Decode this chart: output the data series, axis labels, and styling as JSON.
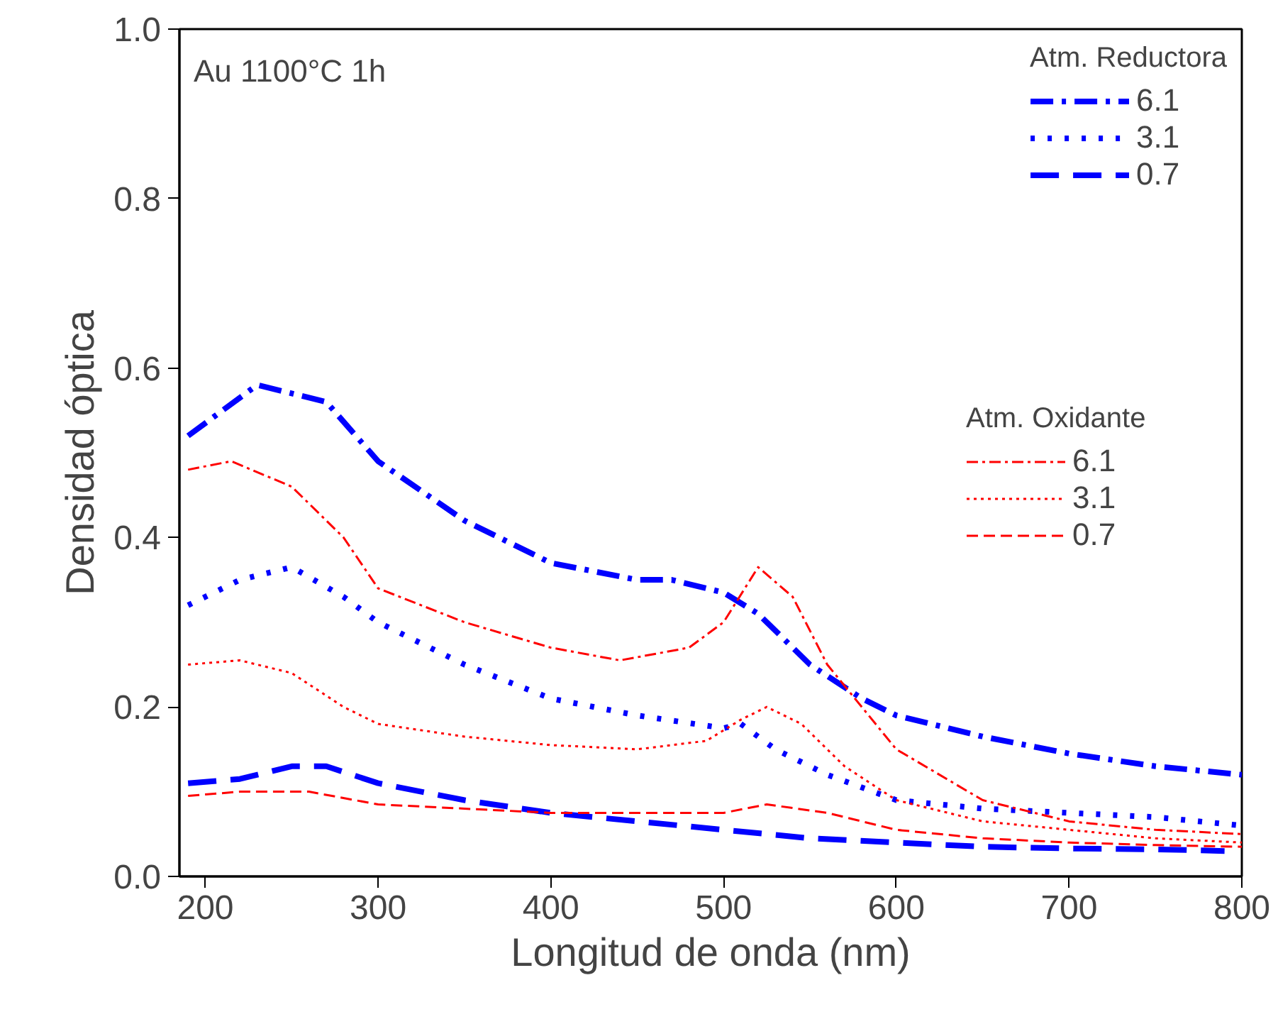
{
  "chart_data": {
    "type": "line",
    "xlabel": "Longitud de onda (nm)",
    "ylabel": "Densidad óptica",
    "xlim": [
      185,
      800
    ],
    "ylim": [
      0,
      1
    ],
    "xticks": [
      200,
      300,
      400,
      500,
      600,
      700,
      800
    ],
    "yticks": [
      {
        "value": 0,
        "label": "0.0"
      },
      {
        "value": 0.2,
        "label": "0.2"
      },
      {
        "value": 0.4,
        "label": "0.4"
      },
      {
        "value": 0.6,
        "label": "0.6"
      },
      {
        "value": 0.8,
        "label": "0.8"
      },
      {
        "value": 1,
        "label": "1.0"
      }
    ],
    "grid": false,
    "legend": "top right",
    "annotations": [
      "Au  1100°C  1h",
      "Atm. Reductora",
      "Atm. Oxidante"
    ],
    "series": [
      {
        "name": "6.1",
        "color": "#0000ff",
        "line_style": "dashdot",
        "x": [
          190,
          230,
          270,
          300,
          350,
          400,
          450,
          470,
          500,
          520,
          550,
          580,
          600,
          650,
          700,
          750,
          800
        ],
        "values": [
          0.52,
          0.58,
          0.56,
          0.49,
          0.42,
          0.37,
          0.35,
          0.35,
          0.335,
          0.31,
          0.25,
          0.21,
          0.19,
          0.165,
          0.145,
          0.13,
          0.12
        ]
      },
      {
        "name": "3.1",
        "color": "#0000ff",
        "line_style": "dotted",
        "x": [
          190,
          220,
          250,
          280,
          300,
          350,
          400,
          450,
          500,
          510,
          530,
          560,
          600,
          650,
          700,
          750,
          800
        ],
        "values": [
          0.32,
          0.35,
          0.365,
          0.33,
          0.3,
          0.25,
          0.21,
          0.19,
          0.175,
          0.18,
          0.15,
          0.12,
          0.09,
          0.08,
          0.075,
          0.07,
          0.06
        ]
      },
      {
        "name": "0.7",
        "color": "#0000ff",
        "line_style": "dashed",
        "x": [
          190,
          220,
          250,
          270,
          300,
          350,
          400,
          450,
          500,
          550,
          600,
          650,
          700,
          750,
          790
        ],
        "values": [
          0.11,
          0.115,
          0.13,
          0.13,
          0.11,
          0.09,
          0.075,
          0.065,
          0.055,
          0.045,
          0.04,
          0.035,
          0.033,
          0.032,
          0.03
        ]
      },
      {
        "name": "6.1",
        "color": "#ff0000",
        "line_style": "dashdot",
        "x": [
          190,
          215,
          250,
          280,
          300,
          350,
          400,
          440,
          480,
          500,
          520,
          540,
          560,
          600,
          650,
          700,
          750,
          800
        ],
        "values": [
          0.48,
          0.49,
          0.46,
          0.4,
          0.34,
          0.3,
          0.27,
          0.255,
          0.27,
          0.3,
          0.365,
          0.33,
          0.25,
          0.15,
          0.09,
          0.065,
          0.055,
          0.05
        ]
      },
      {
        "name": "3.1",
        "color": "#ff0000",
        "line_style": "dotted",
        "x": [
          190,
          220,
          250,
          280,
          300,
          350,
          400,
          450,
          490,
          510,
          525,
          545,
          570,
          600,
          650,
          700,
          750,
          800
        ],
        "values": [
          0.25,
          0.255,
          0.24,
          0.2,
          0.18,
          0.165,
          0.155,
          0.15,
          0.16,
          0.185,
          0.2,
          0.18,
          0.13,
          0.09,
          0.065,
          0.055,
          0.045,
          0.04
        ]
      },
      {
        "name": "0.7",
        "color": "#ff0000",
        "line_style": "dashed",
        "x": [
          190,
          220,
          260,
          300,
          350,
          400,
          450,
          500,
          525,
          560,
          600,
          650,
          700,
          750,
          800
        ],
        "values": [
          0.095,
          0.1,
          0.1,
          0.085,
          0.08,
          0.075,
          0.075,
          0.075,
          0.085,
          0.075,
          0.055,
          0.045,
          0.04,
          0.037,
          0.035
        ]
      }
    ]
  }
}
